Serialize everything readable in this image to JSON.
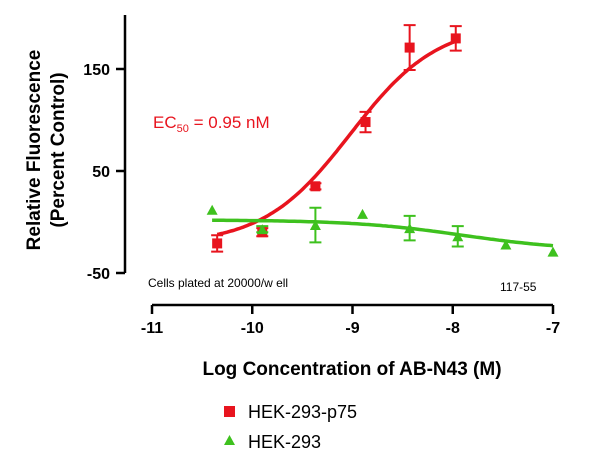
{
  "chart_data": {
    "type": "scatter",
    "xlabel": "Log Concentration of AB-N43 (M)",
    "ylabel_line1": "Relative Fluorescence",
    "ylabel_line2": "(Percent Control)",
    "xlim": [
      -11,
      -7
    ],
    "ylim": [
      -50,
      200
    ],
    "xticks": [
      -11,
      -10,
      -9,
      -8,
      -7
    ],
    "yticks": [
      -50,
      50,
      150
    ],
    "annotation_ec50_prefix": "EC",
    "annotation_ec50_sub": "50",
    "annotation_ec50_value": " = 0.95 nM",
    "annotation_cells": "Cells plated at 20000/w ell",
    "annotation_id": "117-55",
    "legend_position": "bottom",
    "series": [
      {
        "name": "HEK-293-p75",
        "color": "#e8141e",
        "marker": "square",
        "fit": {
          "bottom": -22,
          "top": 195,
          "log_ec50": -9.02,
          "hill": 1.0
        },
        "points": [
          {
            "x": -10.35,
            "y": -21,
            "err": 8
          },
          {
            "x": -9.9,
            "y": -10,
            "err": 4
          },
          {
            "x": -9.37,
            "y": 35,
            "err": 3
          },
          {
            "x": -8.87,
            "y": 98,
            "err": 10
          },
          {
            "x": -8.43,
            "y": 171,
            "err": 22
          },
          {
            "x": -7.97,
            "y": 180,
            "err": 12
          }
        ]
      },
      {
        "name": "HEK-293",
        "color": "#3ec11e",
        "marker": "triangle",
        "fit": {
          "bottom": -28,
          "top": 2,
          "log_ec50": -7.9,
          "hill": -0.8
        },
        "points": [
          {
            "x": -10.4,
            "y": 12,
            "err": 0
          },
          {
            "x": -9.9,
            "y": -7,
            "err": 3
          },
          {
            "x": -9.37,
            "y": -3,
            "err": 17
          },
          {
            "x": -8.9,
            "y": 8,
            "err": 0
          },
          {
            "x": -8.43,
            "y": -6,
            "err": 12
          },
          {
            "x": -7.95,
            "y": -14,
            "err": 10
          },
          {
            "x": -7.47,
            "y": -22,
            "err": 0
          },
          {
            "x": -7.0,
            "y": -29,
            "err": 0
          }
        ]
      }
    ]
  }
}
